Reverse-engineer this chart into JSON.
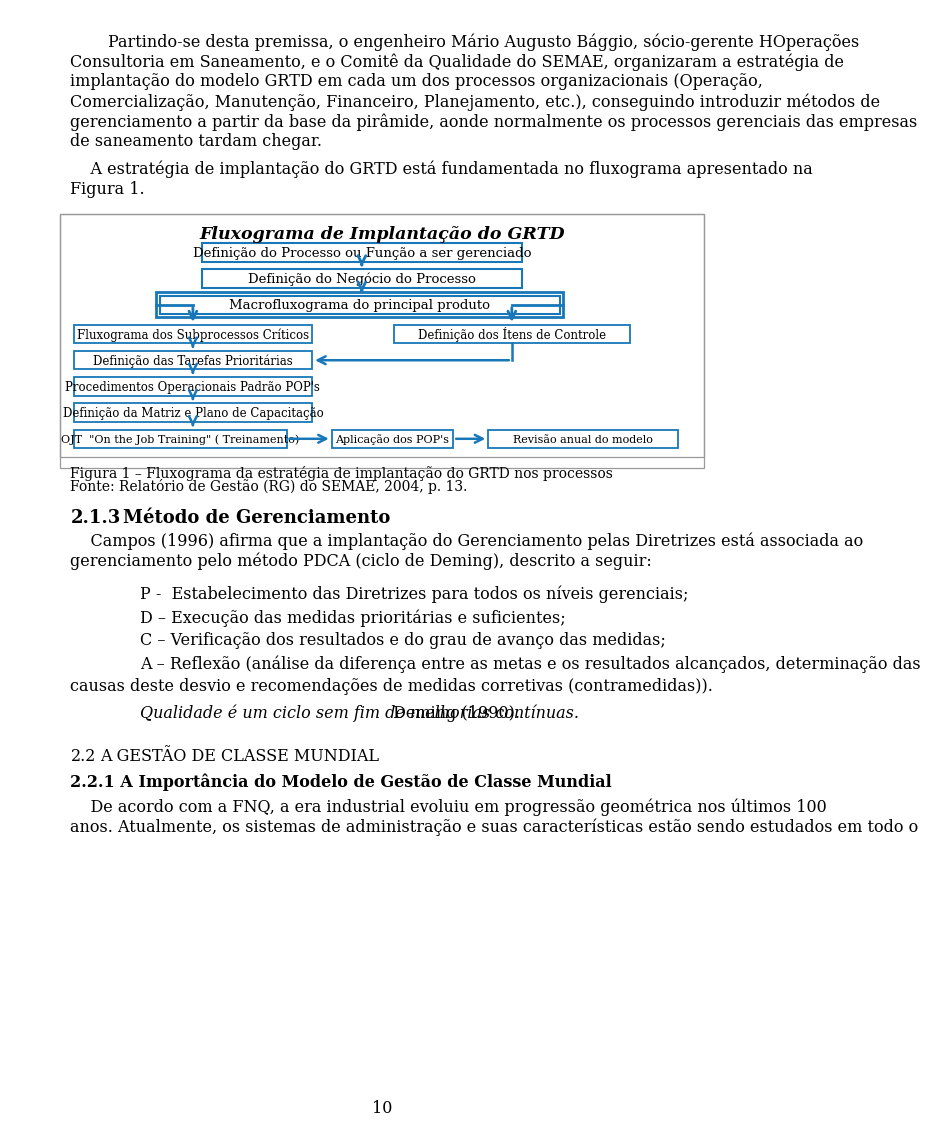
{
  "background_color": "#ffffff",
  "page_number": "10",
  "body_font_size": 11.5,
  "para1_lines": [
    "Partindo-se desta premissa, o engenheiro Mário Augusto Bággio, sócio-gerente HOperações",
    "Consultoria em Saneamento, e o Comitê da Qualidade do SEMAE, organizaram a estratégia de",
    "implantação do modelo GRTD em cada um dos processos organizacionais (Operação,",
    "Comercialização, Manutenção, Financeiro, Planejamento, etc.), conseguindo introduzir métodos de",
    "gerenciamento a partir da base da pirâmide, aonde normalmente os processos gerenciais das empresas",
    "de saneamento tardam chegar."
  ],
  "para2_lines": [
    "    A estratégia de implantação do GRTD está fundamentada no fluxograma apresentado na",
    "Figura 1."
  ],
  "flowchart_title": "Fluxograma de Implantação do GRTD",
  "box_color": "#1777b8",
  "box_fill": "#ffffff",
  "fig_border_color": "#aaaaaa",
  "figure_caption_line1": "Figura 1 – Fluxograma da estratégia de implantação do GRTD nos processos",
  "figure_caption_line2": "Fonte: Relatório de Gestão (RG) do SEMAE, 2004, p. 13.",
  "sec213_number": "2.1.3",
  "sec213_title": "Método de Gerenciamento",
  "sec213_para_lines": [
    "    Campos (1996) afirma que a implantação do Gerenciamento pelas Diretrizes está associada ao",
    "gerenciamento pelo método PDCA (ciclo de Deming), descrito a seguir:"
  ],
  "pdca_items": [
    "P -  Estabelecimento das Diretrizes para todos os níveis gerenciais;",
    "D – Execução das medidas prioritárias e suficientes;",
    "C – Verificação dos resultados e do grau de avanço das medidas;",
    "A – Reflexão (análise da diferença entre as metas e os resultados alcançados, determinação das"
  ],
  "pdca_continuation": "causas deste desvio e recomendações de medidas corretivas (contramedidas)).",
  "quote_italic": "Qualidade é um ciclo sem fim de melhorias contínuas.",
  "quote_normal": " Deming (1990).",
  "sec22_number": "2.2",
  "sec22_title": "A GESTÃO DE CLASSE MUNDIAL",
  "sec221_full": "2.2.1 A Importância do Modelo de Gestão de Classe Mundial",
  "sec221_para_lines": [
    "    De acordo com a FNQ, a era industrial evoluiu em progressão geométrica nos últimos 100",
    "anos. Atualmente, os sistemas de administração e suas características estão sendo estudados em todo o"
  ],
  "left_boxes": [
    "Fluxograma dos Subprocessos Críticos",
    "Definição das Tarefas Prioritárias",
    "Procedimentos Operacionais Padrão POP's",
    "Definição da Matriz e Plano de Capacitação"
  ],
  "right_box": "Definição dos Ítens de Controle",
  "bottom_boxes": [
    "OJT  \"On the Job Training\" ( Treinamento)",
    "Aplicação dos POP's",
    "Revisão anual do modelo"
  ],
  "box1_label": "Definição do Processo ou Função a ser gerenciado",
  "box2_label": "Definição do Negócio do Processo",
  "box3_label": "Macrofluxograma do principal produto"
}
